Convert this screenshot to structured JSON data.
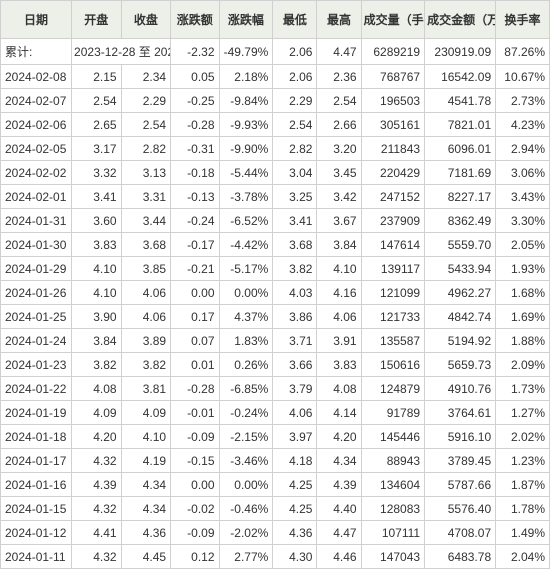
{
  "table": {
    "type": "table",
    "background_color": "#ffffff",
    "header_background": "#edf0e9",
    "border_color": "#d0d0d0",
    "text_color": "#333333",
    "fontsize": 12,
    "columns": [
      {
        "key": "date",
        "label": "日期",
        "width_pct": 13.2,
        "align": "left"
      },
      {
        "key": "open",
        "label": "开盘",
        "width_pct": 9.2,
        "align": "right"
      },
      {
        "key": "close",
        "label": "收盘",
        "width_pct": 9.2,
        "align": "right"
      },
      {
        "key": "chgval",
        "label": "涨跌额",
        "width_pct": 9.0,
        "align": "right"
      },
      {
        "key": "chgpct",
        "label": "涨跌幅",
        "width_pct": 10.0,
        "align": "right"
      },
      {
        "key": "low",
        "label": "最低",
        "width_pct": 8.2,
        "align": "right"
      },
      {
        "key": "high",
        "label": "最高",
        "width_pct": 8.2,
        "align": "right"
      },
      {
        "key": "vol",
        "label": "成交量（手）",
        "width_pct": 11.8,
        "align": "right"
      },
      {
        "key": "amt",
        "label": "成交金额（万）",
        "width_pct": 13.2,
        "align": "right"
      },
      {
        "key": "turn",
        "label": "换手率",
        "width_pct": 10.0,
        "align": "right"
      }
    ],
    "summary": {
      "date": "累计:",
      "period": "2023-12-28 至 2024-02-08",
      "chgval": "-2.32",
      "chgpct": "-49.79%",
      "low": "2.06",
      "high": "4.47",
      "vol": "6289219",
      "amt": "230919.09",
      "turn": "87.26%"
    },
    "rows": [
      {
        "date": "2024-02-08",
        "open": "2.15",
        "close": "2.34",
        "chgval": "0.05",
        "chgpct": "2.18%",
        "low": "2.06",
        "high": "2.36",
        "vol": "768767",
        "amt": "16542.09",
        "turn": "10.67%"
      },
      {
        "date": "2024-02-07",
        "open": "2.54",
        "close": "2.29",
        "chgval": "-0.25",
        "chgpct": "-9.84%",
        "low": "2.29",
        "high": "2.54",
        "vol": "196503",
        "amt": "4541.78",
        "turn": "2.73%"
      },
      {
        "date": "2024-02-06",
        "open": "2.65",
        "close": "2.54",
        "chgval": "-0.28",
        "chgpct": "-9.93%",
        "low": "2.54",
        "high": "2.66",
        "vol": "305161",
        "amt": "7821.01",
        "turn": "4.23%"
      },
      {
        "date": "2024-02-05",
        "open": "3.17",
        "close": "2.82",
        "chgval": "-0.31",
        "chgpct": "-9.90%",
        "low": "2.82",
        "high": "3.20",
        "vol": "211843",
        "amt": "6096.01",
        "turn": "2.94%"
      },
      {
        "date": "2024-02-02",
        "open": "3.32",
        "close": "3.13",
        "chgval": "-0.18",
        "chgpct": "-5.44%",
        "low": "3.04",
        "high": "3.45",
        "vol": "220429",
        "amt": "7181.69",
        "turn": "3.06%"
      },
      {
        "date": "2024-02-01",
        "open": "3.41",
        "close": "3.31",
        "chgval": "-0.13",
        "chgpct": "-3.78%",
        "low": "3.25",
        "high": "3.42",
        "vol": "247152",
        "amt": "8227.17",
        "turn": "3.43%"
      },
      {
        "date": "2024-01-31",
        "open": "3.60",
        "close": "3.44",
        "chgval": "-0.24",
        "chgpct": "-6.52%",
        "low": "3.41",
        "high": "3.67",
        "vol": "237909",
        "amt": "8362.49",
        "turn": "3.30%"
      },
      {
        "date": "2024-01-30",
        "open": "3.83",
        "close": "3.68",
        "chgval": "-0.17",
        "chgpct": "-4.42%",
        "low": "3.68",
        "high": "3.84",
        "vol": "147614",
        "amt": "5559.70",
        "turn": "2.05%"
      },
      {
        "date": "2024-01-29",
        "open": "4.10",
        "close": "3.85",
        "chgval": "-0.21",
        "chgpct": "-5.17%",
        "low": "3.82",
        "high": "4.10",
        "vol": "139117",
        "amt": "5433.94",
        "turn": "1.93%"
      },
      {
        "date": "2024-01-26",
        "open": "4.10",
        "close": "4.06",
        "chgval": "0.00",
        "chgpct": "0.00%",
        "low": "4.03",
        "high": "4.16",
        "vol": "121099",
        "amt": "4962.27",
        "turn": "1.68%"
      },
      {
        "date": "2024-01-25",
        "open": "3.90",
        "close": "4.06",
        "chgval": "0.17",
        "chgpct": "4.37%",
        "low": "3.86",
        "high": "4.06",
        "vol": "121733",
        "amt": "4842.74",
        "turn": "1.69%"
      },
      {
        "date": "2024-01-24",
        "open": "3.84",
        "close": "3.89",
        "chgval": "0.07",
        "chgpct": "1.83%",
        "low": "3.71",
        "high": "3.91",
        "vol": "135587",
        "amt": "5194.92",
        "turn": "1.88%"
      },
      {
        "date": "2024-01-23",
        "open": "3.82",
        "close": "3.82",
        "chgval": "0.01",
        "chgpct": "0.26%",
        "low": "3.66",
        "high": "3.83",
        "vol": "150616",
        "amt": "5659.73",
        "turn": "2.09%"
      },
      {
        "date": "2024-01-22",
        "open": "4.08",
        "close": "3.81",
        "chgval": "-0.28",
        "chgpct": "-6.85%",
        "low": "3.79",
        "high": "4.08",
        "vol": "124879",
        "amt": "4910.76",
        "turn": "1.73%"
      },
      {
        "date": "2024-01-19",
        "open": "4.09",
        "close": "4.09",
        "chgval": "-0.01",
        "chgpct": "-0.24%",
        "low": "4.06",
        "high": "4.14",
        "vol": "91789",
        "amt": "3764.61",
        "turn": "1.27%"
      },
      {
        "date": "2024-01-18",
        "open": "4.20",
        "close": "4.10",
        "chgval": "-0.09",
        "chgpct": "-2.15%",
        "low": "3.97",
        "high": "4.20",
        "vol": "145446",
        "amt": "5916.10",
        "turn": "2.02%"
      },
      {
        "date": "2024-01-17",
        "open": "4.32",
        "close": "4.19",
        "chgval": "-0.15",
        "chgpct": "-3.46%",
        "low": "4.18",
        "high": "4.34",
        "vol": "88943",
        "amt": "3789.45",
        "turn": "1.23%"
      },
      {
        "date": "2024-01-16",
        "open": "4.39",
        "close": "4.34",
        "chgval": "0.00",
        "chgpct": "0.00%",
        "low": "4.25",
        "high": "4.39",
        "vol": "134604",
        "amt": "5787.66",
        "turn": "1.87%"
      },
      {
        "date": "2024-01-15",
        "open": "4.32",
        "close": "4.34",
        "chgval": "-0.02",
        "chgpct": "-0.46%",
        "low": "4.25",
        "high": "4.40",
        "vol": "128083",
        "amt": "5576.40",
        "turn": "1.78%"
      },
      {
        "date": "2024-01-12",
        "open": "4.41",
        "close": "4.36",
        "chgval": "-0.09",
        "chgpct": "-2.02%",
        "low": "4.36",
        "high": "4.47",
        "vol": "107111",
        "amt": "4708.07",
        "turn": "1.49%"
      },
      {
        "date": "2024-01-11",
        "open": "4.32",
        "close": "4.45",
        "chgval": "0.12",
        "chgpct": "2.77%",
        "low": "4.30",
        "high": "4.46",
        "vol": "147043",
        "amt": "6483.78",
        "turn": "2.04%"
      }
    ]
  }
}
